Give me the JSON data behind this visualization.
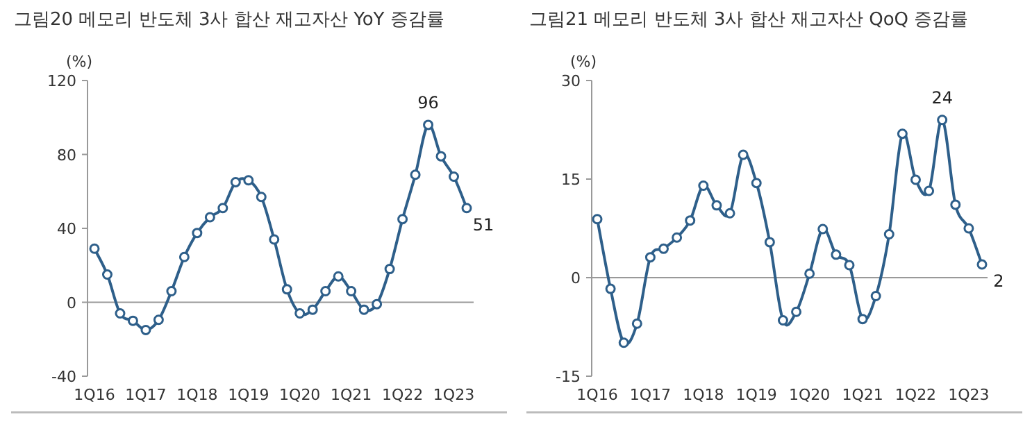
{
  "chart_data": [
    {
      "type": "line",
      "title": "그림20 메모리 반도체 3사 합산 재고자산 YoY 증감률",
      "ylabel": "(%)",
      "categories": [
        "1Q16",
        null,
        null,
        null,
        "1Q17",
        null,
        null,
        null,
        "1Q18",
        null,
        null,
        null,
        "1Q19",
        null,
        null,
        null,
        "1Q20",
        null,
        null,
        null,
        "1Q21",
        null,
        null,
        null,
        "1Q22",
        null,
        null,
        null,
        "1Q23",
        null
      ],
      "series": [
        {
          "color": "#2e5f8a",
          "values": [
            29,
            15,
            -6,
            -10,
            -15,
            -9.5,
            6,
            24.5,
            37.5,
            46,
            51,
            65,
            66,
            57,
            34,
            7,
            -6,
            -4,
            6,
            14,
            6,
            -4,
            -1,
            18,
            45,
            69,
            96,
            79,
            68,
            51
          ],
          "value_labels": [
            null,
            null,
            null,
            null,
            null,
            null,
            null,
            null,
            null,
            null,
            null,
            null,
            null,
            null,
            null,
            null,
            null,
            null,
            null,
            null,
            null,
            null,
            null,
            null,
            null,
            null,
            "96",
            null,
            null,
            "51"
          ]
        }
      ],
      "ylim": [
        -40,
        120
      ],
      "yticks": [
        -40,
        0,
        40,
        80,
        120
      ],
      "marker": "circle",
      "ref_lines": [
        {
          "axis": "y",
          "value": 0,
          "color": "#999999"
        }
      ]
    },
    {
      "type": "line",
      "title": "그림21 메모리 반도체 3사 합산 재고자산 QoQ 증감률",
      "ylabel": "(%)",
      "categories": [
        "1Q16",
        null,
        null,
        null,
        "1Q17",
        null,
        null,
        null,
        "1Q18",
        null,
        null,
        null,
        "1Q19",
        null,
        null,
        null,
        "1Q20",
        null,
        null,
        null,
        "1Q21",
        null,
        null,
        null,
        "1Q22",
        null,
        null,
        null,
        "1Q23",
        null
      ],
      "series": [
        {
          "color": "#2e5f8a",
          "values": [
            8.9,
            -1.7,
            -9.9,
            -7,
            3.1,
            4.4,
            6.1,
            8.7,
            14,
            11,
            9.8,
            18.7,
            14.4,
            5.4,
            -6.5,
            -5.2,
            0.6,
            7.4,
            3.5,
            1.9,
            -6.3,
            -2.8,
            6.6,
            21.9,
            14.9,
            13.2,
            24,
            11.1,
            7.5,
            2
          ],
          "value_labels": [
            null,
            null,
            null,
            null,
            null,
            null,
            null,
            null,
            null,
            null,
            null,
            null,
            null,
            null,
            null,
            null,
            null,
            null,
            null,
            null,
            null,
            null,
            null,
            null,
            null,
            null,
            "24",
            null,
            null,
            "2"
          ]
        }
      ],
      "ylim": [
        -15,
        30
      ],
      "yticks": [
        -15,
        0,
        15,
        30
      ],
      "marker": "circle",
      "ref_lines": [
        {
          "axis": "y",
          "value": 0,
          "color": "#999999"
        }
      ]
    }
  ]
}
